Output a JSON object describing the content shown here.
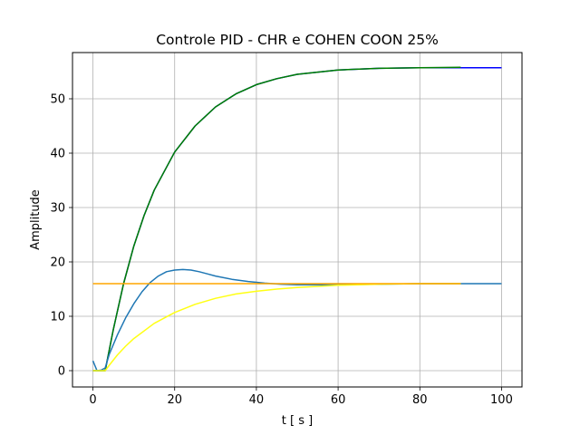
{
  "chart_data": {
    "type": "line",
    "title": "Controle PID - CHR e COHEN COON 25%",
    "xlabel": "t [ s ]",
    "ylabel": "Amplitude",
    "xlim": [
      -5,
      105
    ],
    "ylim": [
      -3,
      58.5
    ],
    "xticks": [
      0,
      20,
      40,
      60,
      80,
      100
    ],
    "yticks": [
      0,
      10,
      20,
      30,
      40,
      50
    ],
    "grid": true,
    "series": [
      {
        "color": "#0000ff",
        "x": [
          0,
          2.5,
          3,
          5,
          7.5,
          10,
          12.5,
          15,
          20,
          25,
          30,
          35,
          40,
          45,
          50,
          60,
          70,
          80,
          90,
          100
        ],
        "y": [
          0,
          0,
          0,
          7.6,
          16.0,
          22.9,
          28.5,
          33.2,
          40.2,
          45.0,
          48.5,
          50.9,
          52.6,
          53.7,
          54.5,
          55.3,
          55.6,
          55.7,
          55.7,
          55.7
        ]
      },
      {
        "color": "#008000",
        "x": [
          0,
          2.5,
          3,
          5,
          7.5,
          10,
          12.5,
          15,
          20,
          25,
          30,
          35,
          40,
          45,
          50,
          60,
          70,
          80,
          90
        ],
        "y": [
          0,
          0,
          0,
          7.6,
          16.0,
          22.9,
          28.5,
          33.2,
          40.2,
          45.0,
          48.5,
          50.9,
          52.6,
          53.7,
          54.5,
          55.3,
          55.6,
          55.7,
          55.8
        ]
      },
      {
        "color": "#1f77b4",
        "x": [
          0,
          1,
          2,
          3,
          4,
          6,
          8,
          10,
          12,
          14,
          16,
          18,
          20,
          22,
          24,
          26,
          28,
          30,
          34,
          38,
          42,
          46,
          50,
          55,
          60,
          70,
          80,
          90,
          100
        ],
        "y": [
          1.8,
          0.0,
          0.1,
          0.5,
          3.0,
          6.6,
          9.7,
          12.3,
          14.5,
          16.2,
          17.4,
          18.2,
          18.5,
          18.6,
          18.5,
          18.2,
          17.8,
          17.4,
          16.8,
          16.4,
          16.1,
          15.9,
          15.8,
          15.8,
          15.8,
          15.9,
          16.0,
          16.0,
          16.0
        ]
      },
      {
        "color": "#ffff14",
        "x": [
          0,
          2.5,
          3,
          4,
          6,
          8,
          10,
          15,
          20,
          25,
          30,
          35,
          40,
          45,
          50,
          55,
          60,
          70,
          80,
          90
        ],
        "y": [
          0,
          0,
          0,
          1.0,
          2.9,
          4.5,
          5.9,
          8.7,
          10.7,
          12.2,
          13.3,
          14.1,
          14.6,
          15.0,
          15.3,
          15.5,
          15.7,
          15.9,
          16.0,
          16.0
        ]
      },
      {
        "color": "#ffa500",
        "x": [
          0,
          90
        ],
        "y": [
          16,
          16
        ]
      }
    ]
  }
}
